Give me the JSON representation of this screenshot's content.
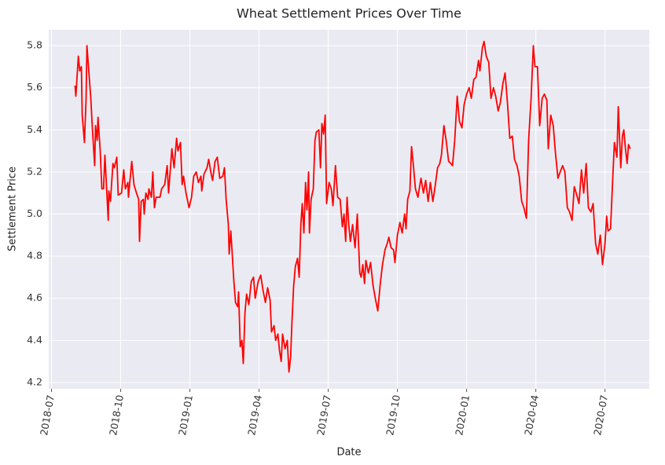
{
  "chart_data": {
    "type": "line",
    "title": "Wheat Settlement Prices Over Time",
    "x_label": "Date",
    "y_label": "Settlement Price",
    "color": "#ff0000",
    "grid": true,
    "xlim": [
      2018.49,
      2020.66
    ],
    "ylim": [
      4.17,
      5.875
    ],
    "xticks": [
      {
        "value": 2018.5,
        "label": "2018-07"
      },
      {
        "value": 2018.75,
        "label": "2018-10"
      },
      {
        "value": 2019.0,
        "label": "2019-01"
      },
      {
        "value": 2019.25,
        "label": "2019-04"
      },
      {
        "value": 2019.5,
        "label": "2019-07"
      },
      {
        "value": 2019.75,
        "label": "2019-10"
      },
      {
        "value": 2020.0,
        "label": "2020-01"
      },
      {
        "value": 2020.25,
        "label": "2020-04"
      },
      {
        "value": 2020.5,
        "label": "2020-07"
      }
    ],
    "yticks": [
      4.2,
      4.4,
      4.6,
      4.8,
      {
        "value": 5.0,
        "label": "5.0"
      },
      5.2,
      5.4,
      5.6,
      5.8
    ],
    "x": [
      2018.585,
      2018.588,
      2018.597,
      2018.602,
      2018.608,
      2018.611,
      2018.619,
      2018.625,
      2018.628,
      2018.642,
      2018.648,
      2018.656,
      2018.659,
      2018.665,
      2018.668,
      2018.676,
      2018.682,
      2018.688,
      2018.693,
      2018.705,
      2018.707,
      2018.713,
      2018.722,
      2018.727,
      2018.736,
      2018.741,
      2018.753,
      2018.761,
      2018.767,
      2018.776,
      2018.778,
      2018.79,
      2018.798,
      2018.807,
      2018.815,
      2018.818,
      2018.824,
      2018.832,
      2018.835,
      2018.841,
      2018.849,
      2018.852,
      2018.861,
      2018.866,
      2018.872,
      2018.878,
      2018.892,
      2018.898,
      2018.909,
      2018.918,
      2018.923,
      2018.935,
      2018.943,
      2018.952,
      2018.957,
      2018.966,
      2018.972,
      2018.977,
      2018.986,
      2018.997,
      2019.006,
      2019.014,
      2019.023,
      2019.031,
      2019.04,
      2019.043,
      2019.051,
      2019.062,
      2019.068,
      2019.077,
      2019.082,
      2019.091,
      2019.099,
      2019.108,
      2019.119,
      2019.125,
      2019.131,
      2019.139,
      2019.142,
      2019.148,
      2019.159,
      2019.165,
      2019.173,
      2019.176,
      2019.182,
      2019.188,
      2019.193,
      2019.199,
      2019.205,
      2019.213,
      2019.222,
      2019.23,
      2019.236,
      2019.247,
      2019.256,
      2019.264,
      2019.273,
      2019.281,
      2019.29,
      2019.295,
      2019.304,
      2019.31,
      2019.318,
      2019.324,
      2019.33,
      2019.335,
      2019.344,
      2019.352,
      2019.358,
      2019.364,
      2019.369,
      2019.375,
      2019.381,
      2019.389,
      2019.395,
      2019.401,
      2019.406,
      2019.412,
      2019.418,
      2019.423,
      2019.429,
      2019.432,
      2019.438,
      2019.446,
      2019.452,
      2019.457,
      2019.466,
      2019.472,
      2019.477,
      2019.483,
      2019.489,
      2019.494,
      2019.503,
      2019.511,
      2019.517,
      2019.526,
      2019.534,
      2019.543,
      2019.551,
      2019.557,
      2019.563,
      2019.568,
      2019.574,
      2019.58,
      2019.588,
      2019.597,
      2019.605,
      2019.614,
      2019.619,
      2019.625,
      2019.631,
      2019.636,
      2019.645,
      2019.653,
      2019.662,
      2019.67,
      2019.679,
      2019.688,
      2019.696,
      2019.705,
      2019.713,
      2019.719,
      2019.727,
      2019.736,
      2019.741,
      2019.75,
      2019.759,
      2019.767,
      2019.776,
      2019.781,
      2019.787,
      2019.795,
      2019.801,
      2019.807,
      2019.815,
      2019.824,
      2019.835,
      2019.844,
      2019.852,
      2019.861,
      2019.869,
      2019.878,
      2019.886,
      2019.895,
      2019.903,
      2019.909,
      2019.918,
      2019.926,
      2019.935,
      2019.943,
      2019.949,
      2019.957,
      2019.966,
      2019.974,
      2019.983,
      2019.991,
      2020.0,
      2020.009,
      2020.017,
      2020.026,
      2020.034,
      2020.043,
      2020.048,
      2020.057,
      2020.063,
      2020.071,
      2020.08,
      2020.088,
      2020.097,
      2020.105,
      2020.114,
      2020.122,
      2020.131,
      2020.139,
      2020.148,
      2020.156,
      2020.165,
      2020.173,
      2020.182,
      2020.19,
      2020.199,
      2020.207,
      2020.216,
      2020.224,
      2020.233,
      2020.241,
      2020.247,
      2020.256,
      2020.264,
      2020.273,
      2020.281,
      2020.29,
      2020.295,
      2020.304,
      2020.313,
      2020.321,
      2020.33,
      2020.338,
      2020.347,
      2020.355,
      2020.364,
      2020.372,
      2020.381,
      2020.389,
      2020.398,
      2020.406,
      2020.415,
      2020.423,
      2020.432,
      2020.44,
      2020.449,
      2020.457,
      2020.466,
      2020.474,
      2020.483,
      2020.491,
      2020.5,
      2020.506,
      2020.511,
      2020.52,
      2020.528,
      2020.534,
      2020.543,
      2020.548,
      2020.557,
      2020.563,
      2020.568,
      2020.574,
      2020.58,
      2020.585,
      2020.591
    ],
    "values": [
      5.61,
      5.56,
      5.75,
      5.68,
      5.7,
      5.47,
      5.34,
      5.55,
      5.8,
      5.55,
      5.4,
      5.23,
      5.42,
      5.35,
      5.46,
      5.3,
      5.12,
      5.12,
      5.28,
      4.97,
      5.11,
      5.06,
      5.24,
      5.22,
      5.27,
      5.09,
      5.1,
      5.21,
      5.12,
      5.15,
      5.08,
      5.25,
      5.14,
      5.1,
      5.07,
      4.87,
      5.06,
      5.07,
      5.0,
      5.1,
      5.07,
      5.12,
      5.08,
      5.2,
      5.03,
      5.08,
      5.08,
      5.12,
      5.14,
      5.23,
      5.1,
      5.31,
      5.22,
      5.36,
      5.3,
      5.34,
      5.14,
      5.18,
      5.1,
      5.03,
      5.08,
      5.18,
      5.2,
      5.15,
      5.18,
      5.11,
      5.19,
      5.22,
      5.26,
      5.19,
      5.16,
      5.25,
      5.27,
      5.17,
      5.18,
      5.22,
      5.07,
      4.95,
      4.81,
      4.92,
      4.68,
      4.58,
      4.56,
      4.63,
      4.37,
      4.4,
      4.29,
      4.53,
      4.62,
      4.57,
      4.68,
      4.7,
      4.6,
      4.68,
      4.71,
      4.64,
      4.58,
      4.65,
      4.59,
      4.44,
      4.47,
      4.4,
      4.43,
      4.35,
      4.3,
      4.43,
      4.36,
      4.4,
      4.25,
      4.32,
      4.49,
      4.66,
      4.75,
      4.79,
      4.7,
      4.95,
      5.05,
      4.91,
      5.15,
      5.02,
      5.2,
      4.91,
      5.07,
      5.12,
      5.35,
      5.39,
      5.4,
      5.22,
      5.43,
      5.38,
      5.47,
      5.05,
      5.15,
      5.12,
      5.04,
      5.23,
      5.08,
      5.07,
      4.94,
      5.0,
      4.87,
      5.08,
      4.95,
      4.87,
      4.95,
      4.84,
      5.0,
      4.72,
      4.7,
      4.76,
      4.67,
      4.78,
      4.72,
      4.77,
      4.66,
      4.6,
      4.54,
      4.67,
      4.76,
      4.83,
      4.86,
      4.89,
      4.84,
      4.83,
      4.77,
      4.9,
      4.96,
      4.91,
      5.0,
      4.93,
      5.07,
      5.11,
      5.32,
      5.24,
      5.12,
      5.08,
      5.17,
      5.1,
      5.16,
      5.06,
      5.15,
      5.06,
      5.13,
      5.22,
      5.24,
      5.28,
      5.42,
      5.35,
      5.25,
      5.24,
      5.23,
      5.35,
      5.56,
      5.44,
      5.41,
      5.52,
      5.57,
      5.6,
      5.55,
      5.64,
      5.65,
      5.73,
      5.68,
      5.79,
      5.82,
      5.75,
      5.72,
      5.55,
      5.6,
      5.56,
      5.49,
      5.53,
      5.62,
      5.67,
      5.52,
      5.36,
      5.37,
      5.26,
      5.23,
      5.18,
      5.06,
      5.03,
      4.98,
      5.35,
      5.55,
      5.8,
      5.7,
      5.7,
      5.42,
      5.55,
      5.57,
      5.54,
      5.31,
      5.47,
      5.42,
      5.29,
      5.17,
      5.2,
      5.23,
      5.2,
      5.03,
      5.01,
      4.97,
      5.13,
      5.09,
      5.05,
      5.21,
      5.1,
      5.24,
      5.03,
      5.01,
      5.05,
      4.86,
      4.81,
      4.9,
      4.76,
      4.86,
      4.99,
      4.92,
      4.93,
      5.17,
      5.34,
      5.27,
      5.51,
      5.22,
      5.37,
      5.4,
      5.31,
      5.24,
      5.33,
      5.31
    ]
  }
}
